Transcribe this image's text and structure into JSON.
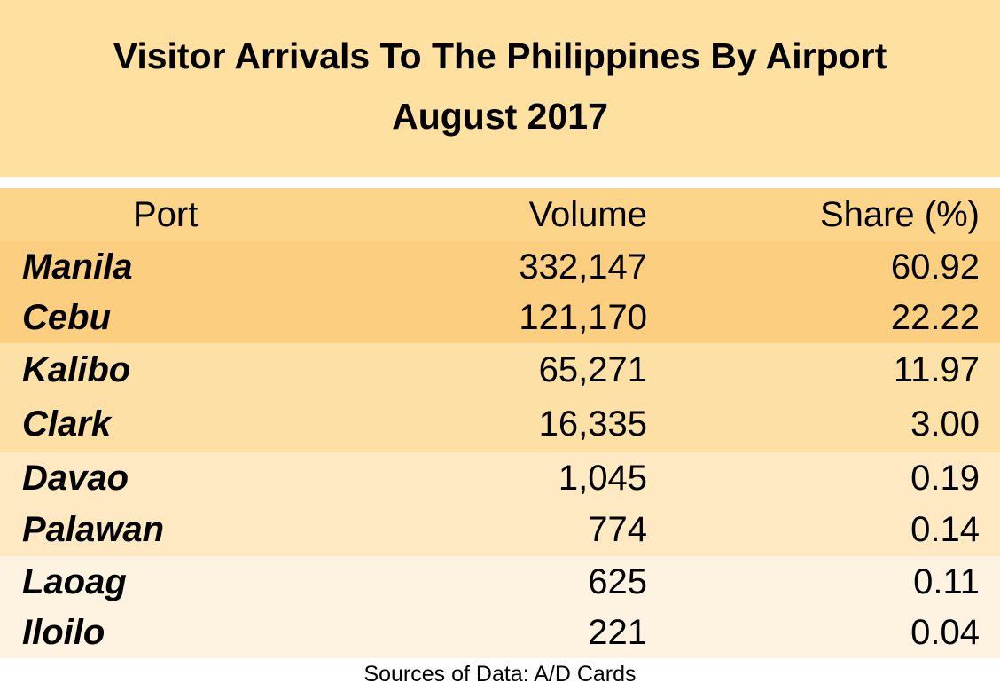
{
  "header": {
    "title": [
      "Visitor Arrivals To The Philippines By Airport",
      "August 2017"
    ]
  },
  "table": {
    "columns": [
      "Port",
      "Volume",
      "Share (%)"
    ],
    "rows": [
      [
        "Manila",
        "332,147",
        "60.92"
      ],
      [
        "Cebu",
        "121,170",
        "22.22"
      ],
      [
        "Kalibo",
        "65,271",
        "11.97"
      ],
      [
        "Clark",
        "16,335",
        "3.00"
      ],
      [
        "Davao",
        "1,045",
        "0.19"
      ],
      [
        "Palawan",
        "774",
        "0.14"
      ],
      [
        "Laoag",
        "625",
        "0.11"
      ],
      [
        "Iloilo",
        "221",
        "0.04"
      ]
    ]
  },
  "footer": {
    "source": "Sources of Data: A/D Cards"
  }
}
